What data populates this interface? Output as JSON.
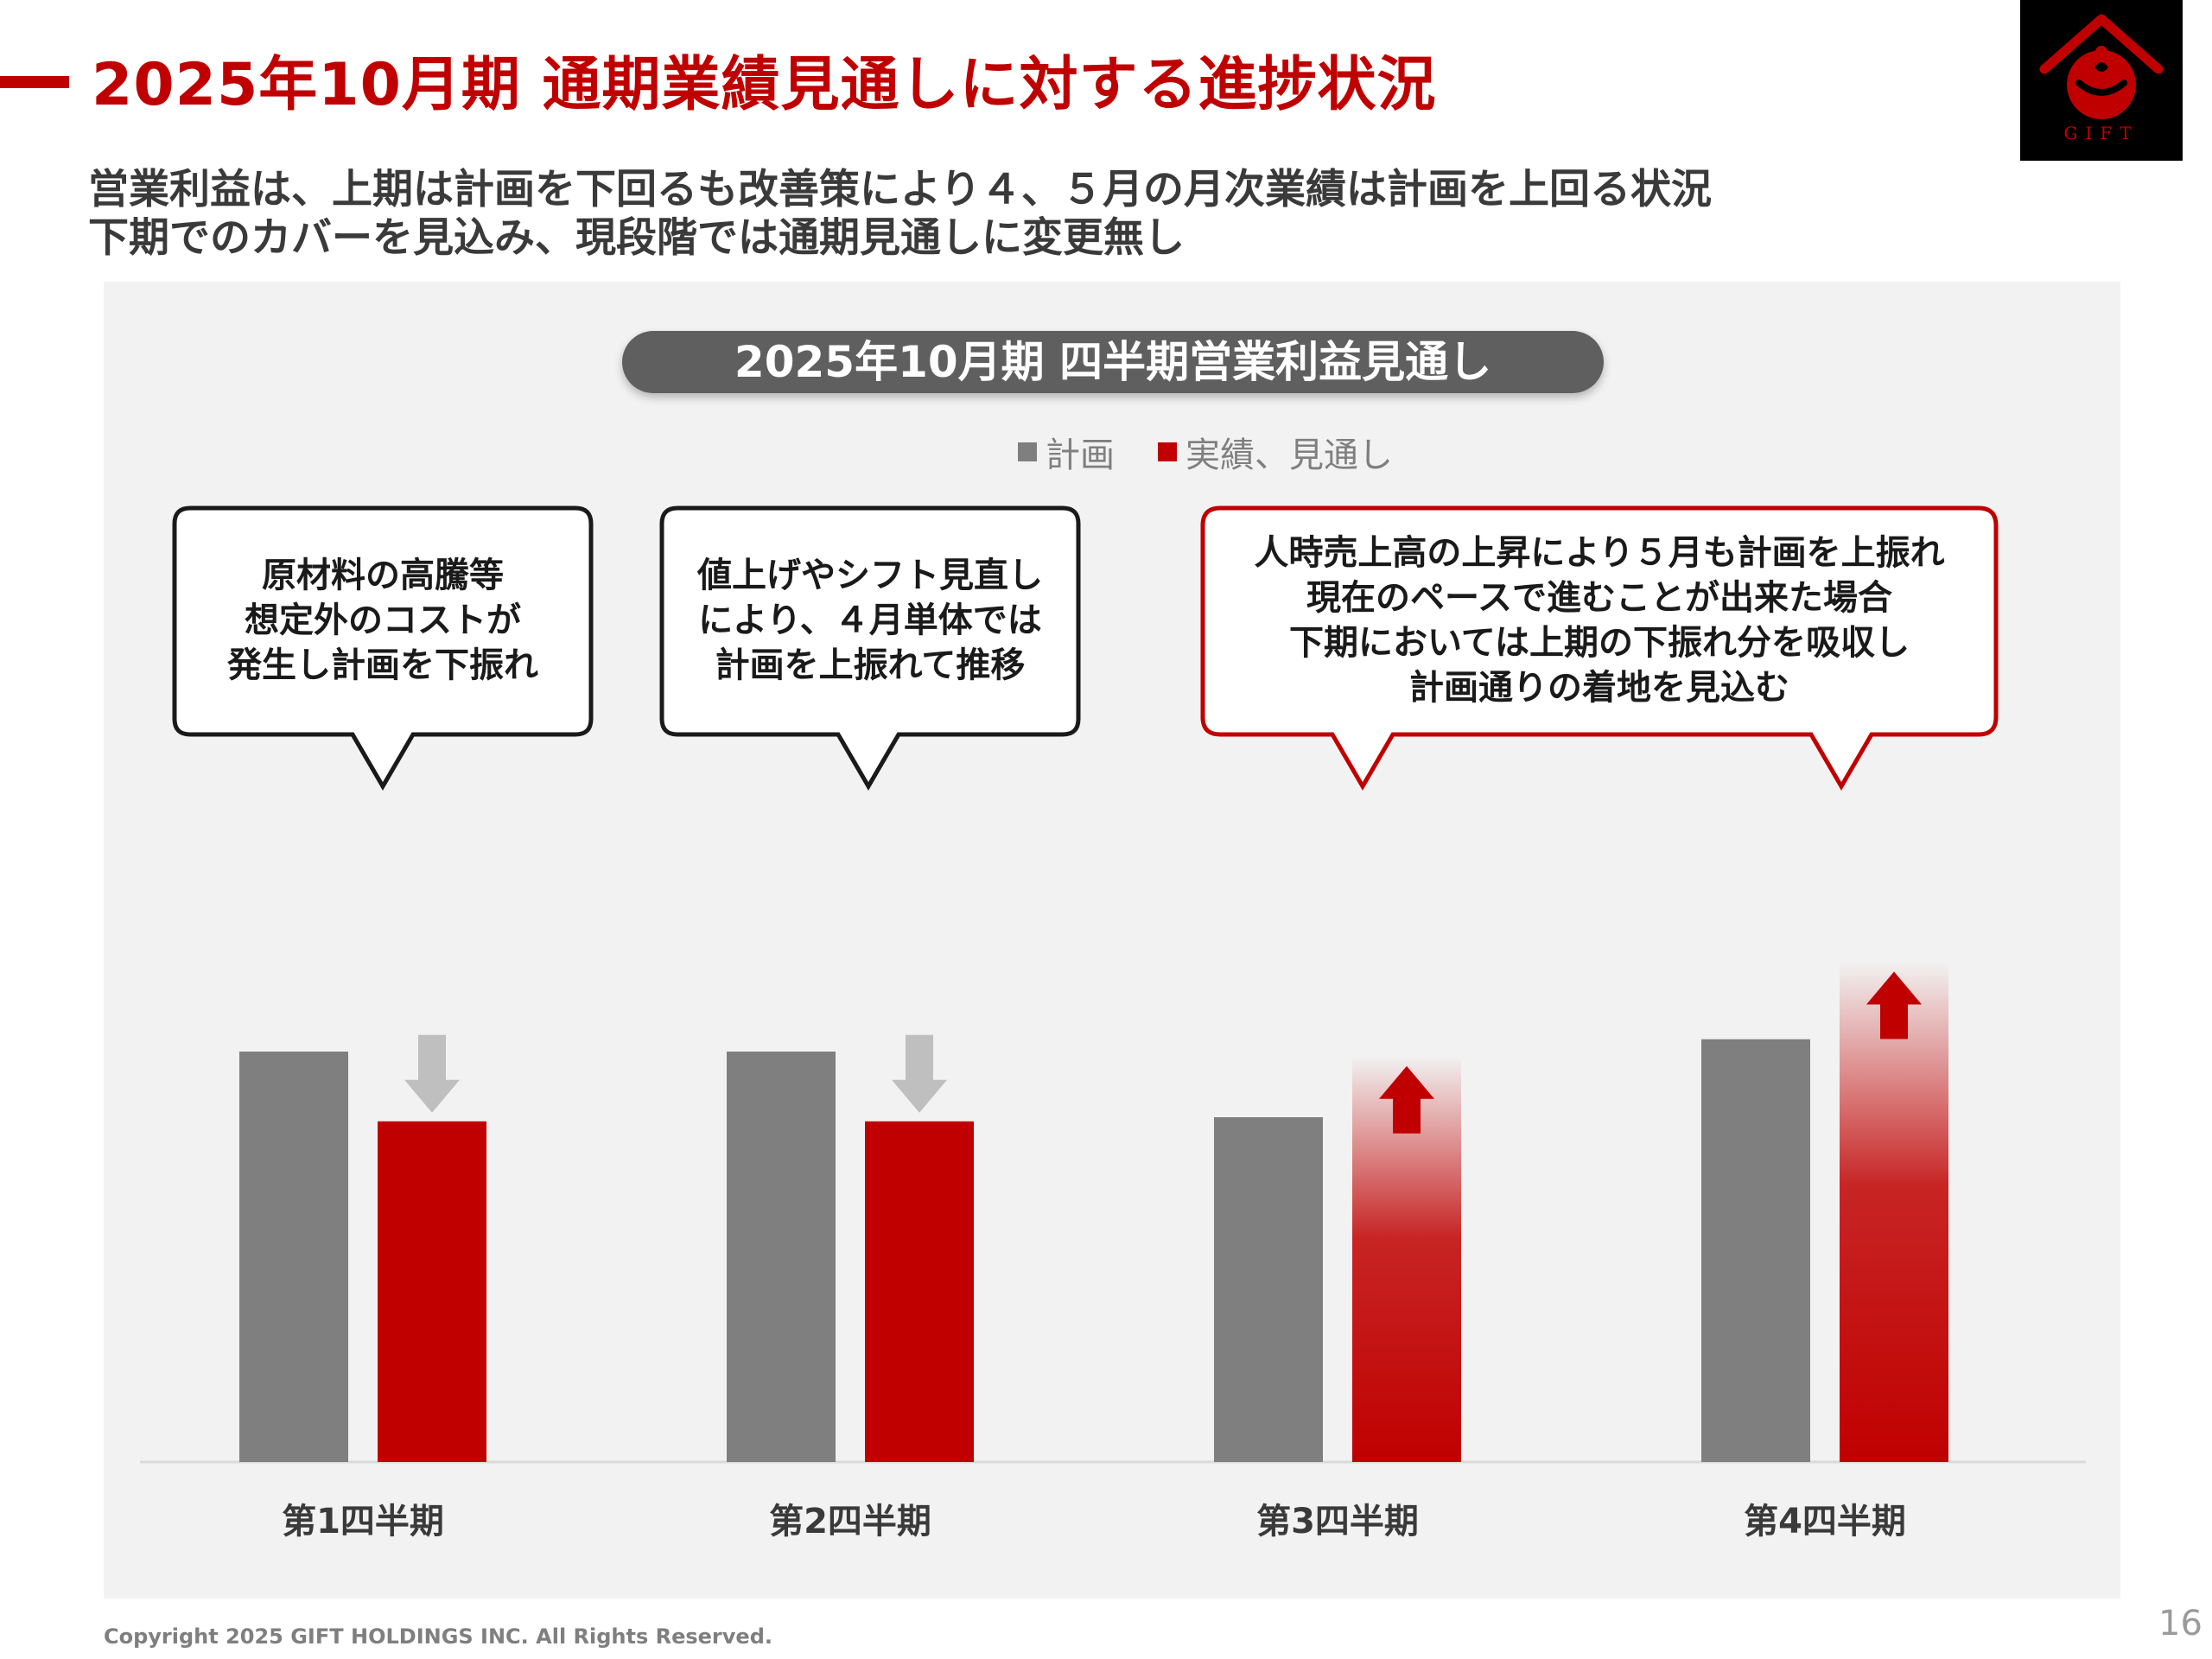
{
  "header": {
    "title": "2025年10月期 通期業績見通しに対する進捗状況",
    "subtitle_lines": [
      "営業利益は、上期は計画を下回るも改善策により４、５月の月次業績は計画を上回る状況",
      "下期でのカバーを見込み、現段階では通期見通しに変更無し"
    ]
  },
  "logo": {
    "text": "GIFT"
  },
  "colors": {
    "accent": "#c00000",
    "plan": "#7f7f7f",
    "actual": "#c00000",
    "panel": "#f2f2f2"
  },
  "callouts": [
    {
      "lines": [
        "原材料の高騰等",
        "想定外のコストが",
        "発生し計画を下振れ"
      ]
    },
    {
      "lines": [
        "値上げやシフト見直し",
        "により、４月単体では",
        "計画を上振れて推移"
      ]
    },
    {
      "lines": [
        "人時売上高の上昇により５月も計画を上振れ",
        "現在のペースで進むことが出来た場合",
        "下期においては上期の下振れ分を吸収し",
        "計画通りの着地を見込む"
      ]
    }
  ],
  "chart_data": {
    "type": "bar",
    "title": "2025年10月期 四半期営業利益見通し",
    "categories": [
      "第1四半期",
      "第2四半期",
      "第3四半期",
      "第4四半期"
    ],
    "series": [
      {
        "name": "計画",
        "values": [
          100,
          100,
          84,
          103
        ],
        "color": "#7f7f7f"
      },
      {
        "name": "実績、見通し",
        "values": [
          83,
          83,
          99,
          122
        ],
        "color": "#c00000"
      }
    ],
    "trend_arrows": [
      "down",
      "down",
      "up",
      "up"
    ],
    "projected": [
      false,
      false,
      true,
      true
    ],
    "ylim": [
      0,
      130
    ],
    "xlabel": "",
    "ylabel": "",
    "legend": "top-center"
  },
  "footer": {
    "copyright": "Copyright 2025 GIFT HOLDINGS INC. All Rights Reserved.",
    "page": "16"
  }
}
